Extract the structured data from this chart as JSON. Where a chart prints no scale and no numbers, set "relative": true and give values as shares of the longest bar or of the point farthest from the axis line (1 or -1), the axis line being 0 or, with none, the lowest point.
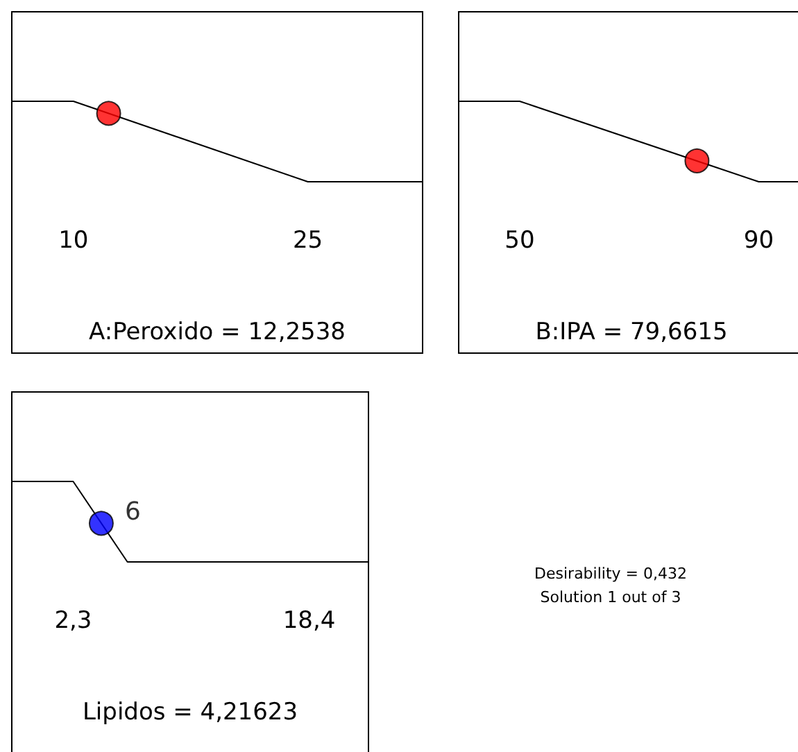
{
  "chart_data": [
    {
      "type": "line",
      "relative": true,
      "xlabel": "A:Peroxido = 12,2538",
      "xlim": [
        6.1,
        32.3
      ],
      "xticks": [
        10,
        25
      ],
      "marker": "none",
      "series": [
        {
          "color": "#000000",
          "x": [
            6.1,
            10,
            25,
            32.3
          ],
          "values": [
            1,
            1,
            0,
            0
          ]
        },
        {
          "type": "scatter",
          "marker": "circle",
          "color": "#ff0000",
          "x": [
            12.2538
          ],
          "values": [
            0.85
          ]
        }
      ]
    },
    {
      "type": "line",
      "relative": true,
      "xlabel": "B:IPA = 79,6615",
      "xlim": [
        39.9,
        97.5
      ],
      "xticks": [
        50,
        90
      ],
      "marker": "none",
      "series": [
        {
          "color": "#000000",
          "x": [
            39.9,
            50,
            90,
            97.5
          ],
          "values": [
            1,
            1,
            0,
            0
          ]
        },
        {
          "type": "scatter",
          "marker": "circle",
          "color": "#ff0000",
          "x": [
            79.6615
          ],
          "values": [
            0.26
          ]
        }
      ]
    },
    {
      "type": "line",
      "relative": true,
      "xlabel": "Lipidos = 4,21623",
      "xlim": [
        -1.84,
        22.4
      ],
      "xticks": [
        {
          "value": 2.3,
          "label": "2,3"
        },
        {
          "value": 18.4,
          "label": "18,4"
        }
      ],
      "marker": "none",
      "annotations": [
        "6"
      ],
      "series": [
        {
          "color": "#000000",
          "x": [
            -1.84,
            2.3,
            6,
            22.4
          ],
          "values": [
            1,
            1,
            0,
            0
          ]
        },
        {
          "type": "scatter",
          "marker": "circle",
          "color": "#0000ff",
          "x": [
            4.21623
          ],
          "values": [
            0.48
          ]
        }
      ]
    },
    {
      "type": "other",
      "annotations": [
        "Desirability = 0,432",
        "Solution 1 out of 3"
      ]
    }
  ]
}
